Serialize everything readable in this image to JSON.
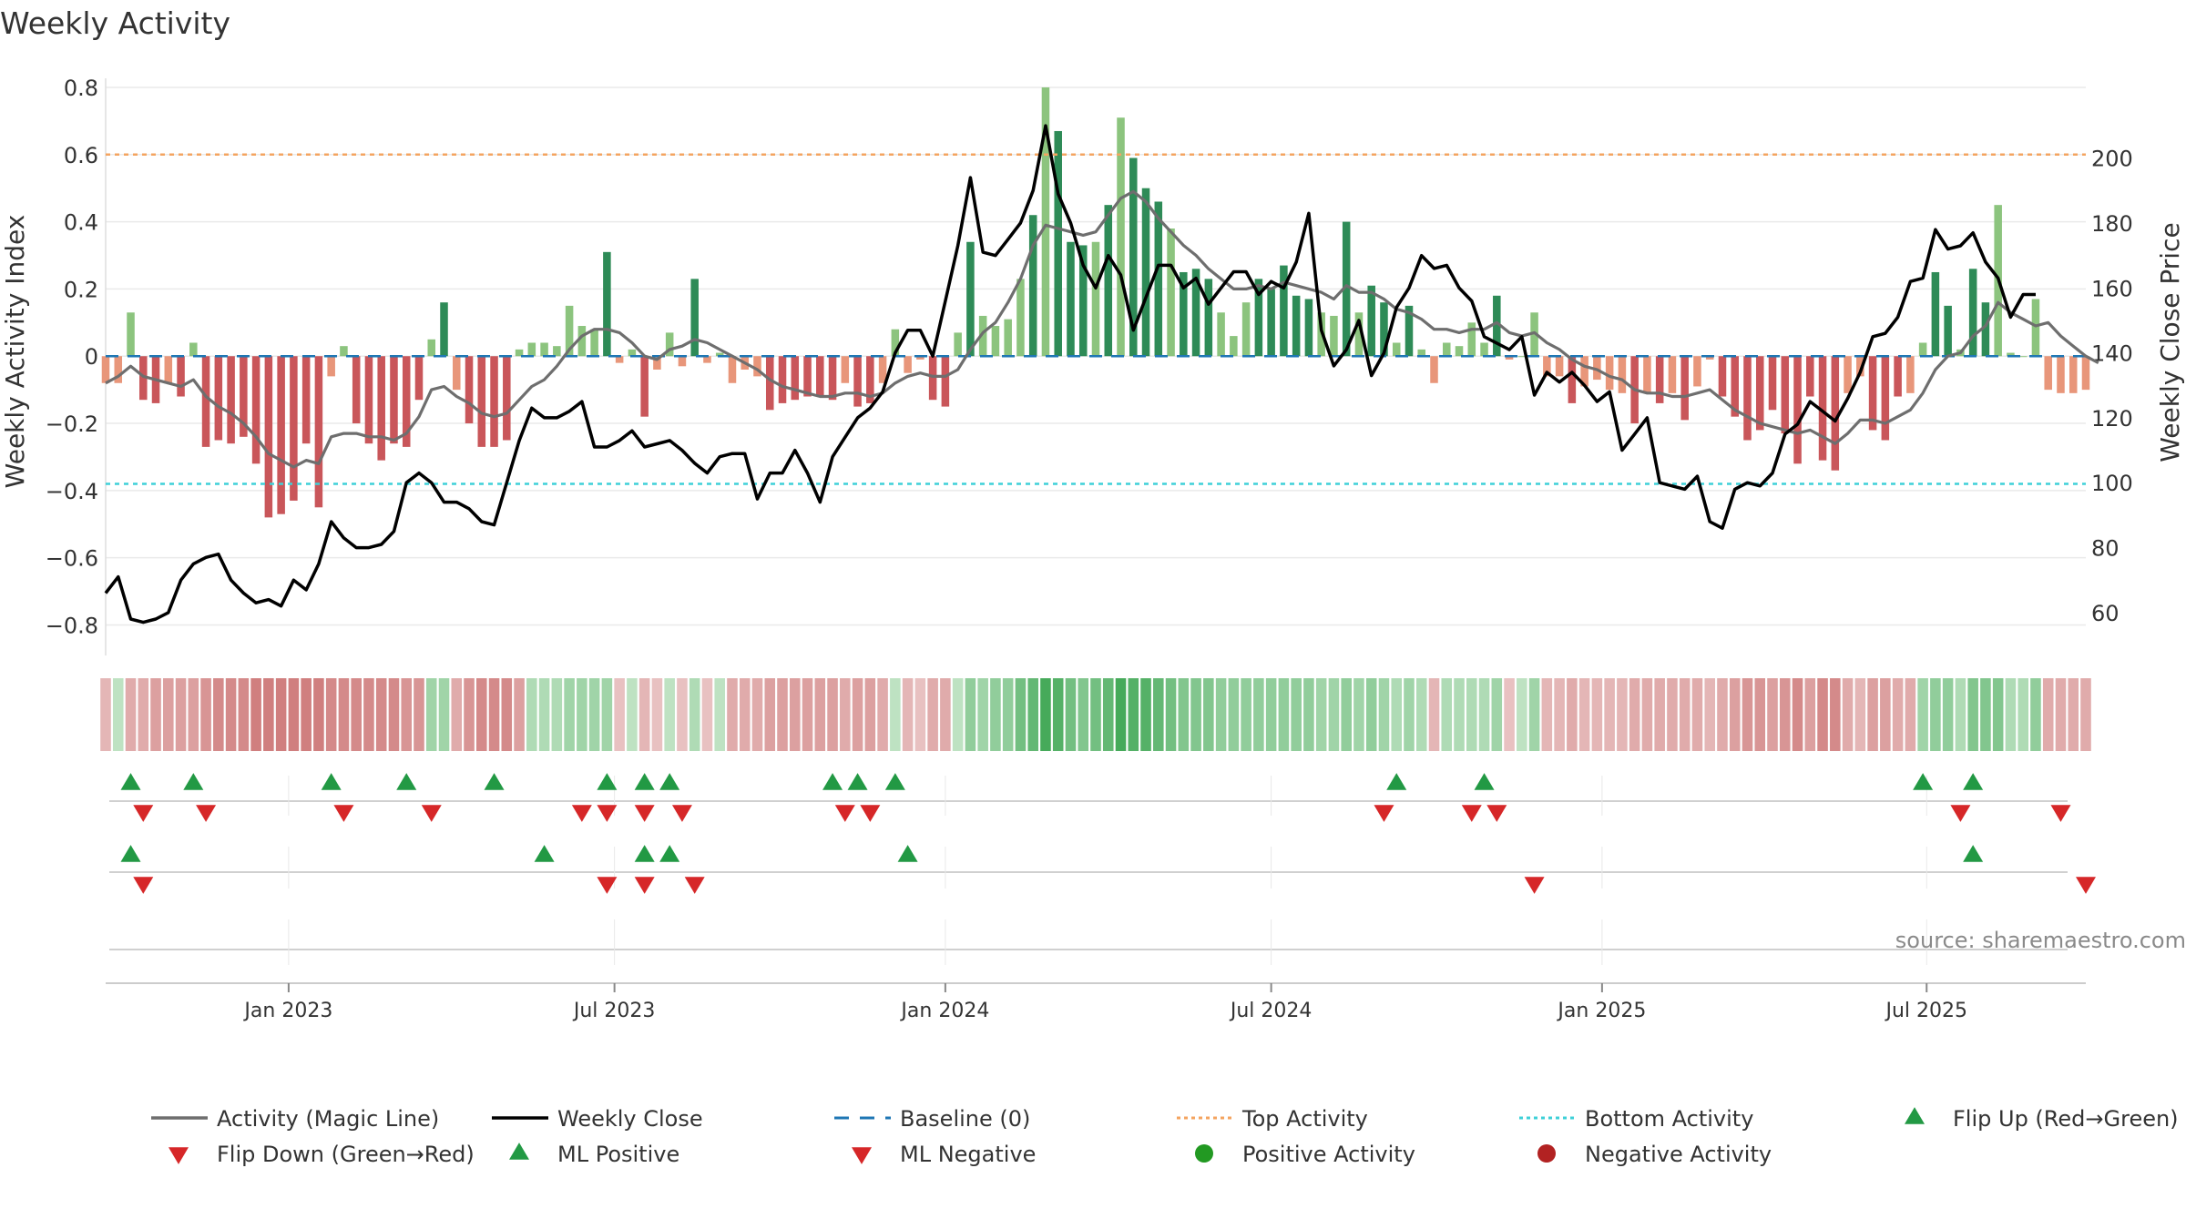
{
  "chart_data": {
    "type": "bar",
    "title": "Weekly Activity",
    "source": "source: sharemaestro.com",
    "ylabel_left": "Weekly Activity Index",
    "ylabel_right": "Weekly Close Price",
    "ylim_left": [
      -0.88,
      0.8
    ],
    "ylim_right": [
      47.9,
      221.8
    ],
    "yticks_left": [
      0.8,
      0.6,
      0.4,
      0.2,
      0,
      -0.2,
      -0.4,
      -0.6,
      -0.8
    ],
    "yticks_left_labels": [
      "0.8",
      "0.6",
      "0.4",
      "0.2",
      "0",
      "−0.2",
      "−0.4",
      "−0.6",
      "−0.8"
    ],
    "yticks_right": [
      200,
      180,
      160,
      140,
      120,
      100,
      80,
      60
    ],
    "yticks_right_labels": [
      "200",
      "180",
      "160",
      "140",
      "120",
      "100",
      "80",
      "60"
    ],
    "x_range": [
      0,
      158
    ],
    "x_ticks": [
      {
        "label": "Jan 2023",
        "x": 14.6
      },
      {
        "label": "Jul 2023",
        "x": 40.6
      },
      {
        "label": "Jan 2024",
        "x": 67
      },
      {
        "label": "Jul 2024",
        "x": 93
      },
      {
        "label": "Jan 2025",
        "x": 119.4
      },
      {
        "label": "Jul 2025",
        "x": 145.3
      }
    ],
    "top_activity": 0.6,
    "bottom_activity": -0.38,
    "activity": [
      -0.08,
      -0.08,
      0.13,
      -0.13,
      -0.14,
      -0.08,
      -0.12,
      0.04,
      -0.27,
      -0.25,
      -0.26,
      -0.24,
      -0.32,
      -0.48,
      -0.47,
      -0.43,
      -0.26,
      -0.45,
      -0.06,
      0.03,
      -0.2,
      -0.26,
      -0.31,
      -0.26,
      -0.27,
      -0.13,
      0.05,
      0.16,
      -0.1,
      -0.2,
      -0.27,
      -0.27,
      -0.25,
      0.02,
      0.04,
      0.04,
      0.03,
      0.15,
      0.09,
      0.08,
      0.31,
      -0.02,
      0.02,
      -0.18,
      -0.04,
      0.07,
      -0.03,
      0.23,
      -0.02,
      0.01,
      -0.08,
      -0.04,
      -0.06,
      -0.16,
      -0.14,
      -0.13,
      -0.12,
      -0.12,
      -0.13,
      -0.08,
      -0.15,
      -0.14,
      -0.08,
      0.08,
      -0.05,
      -0.01,
      -0.13,
      -0.15,
      0.07,
      0.34,
      0.12,
      0.09,
      0.11,
      0.23,
      0.42,
      0.8,
      0.67,
      0.34,
      0.33,
      0.34,
      0.45,
      0.71,
      0.59,
      0.5,
      0.46,
      0.38,
      0.25,
      0.26,
      0.23,
      0.13,
      0.06,
      0.16,
      0.23,
      0.2,
      0.27,
      0.18,
      0.17,
      0.13,
      0.12,
      0.4,
      0.13,
      0.21,
      0.16,
      0.04,
      0.15,
      0.02,
      -0.08,
      0.04,
      0.03,
      0.1,
      0.04,
      0.18,
      -0.01,
      0.0,
      0.13,
      -0.06,
      -0.06,
      -0.14,
      -0.09,
      -0.07,
      -0.1,
      -0.11,
      -0.2,
      -0.11,
      -0.14,
      -0.11,
      -0.19,
      -0.09,
      -0.01,
      -0.12,
      -0.18,
      -0.25,
      -0.22,
      -0.16,
      -0.23,
      -0.32,
      -0.12,
      -0.31,
      -0.34,
      -0.11,
      -0.06,
      -0.22,
      -0.25,
      -0.12,
      -0.11,
      0.04,
      0.25,
      0.15,
      0.02,
      0.26,
      0.16,
      0.45,
      0.01,
      0.0,
      0.17,
      -0.1,
      -0.11,
      -0.11,
      -0.1
    ],
    "magic_line": [
      -0.08,
      -0.06,
      -0.03,
      -0.06,
      -0.07,
      -0.08,
      -0.09,
      -0.07,
      -0.12,
      -0.15,
      -0.17,
      -0.2,
      -0.24,
      -0.29,
      -0.31,
      -0.33,
      -0.31,
      -0.32,
      -0.24,
      -0.23,
      -0.23,
      -0.24,
      -0.24,
      -0.25,
      -0.23,
      -0.18,
      -0.1,
      -0.09,
      -0.12,
      -0.14,
      -0.17,
      -0.18,
      -0.17,
      -0.13,
      -0.09,
      -0.07,
      -0.03,
      0.02,
      0.06,
      0.08,
      0.08,
      0.07,
      0.04,
      0.0,
      -0.01,
      0.02,
      0.03,
      0.05,
      0.04,
      0.02,
      0.0,
      -0.02,
      -0.04,
      -0.07,
      -0.09,
      -0.1,
      -0.11,
      -0.12,
      -0.12,
      -0.11,
      -0.11,
      -0.12,
      -0.11,
      -0.08,
      -0.06,
      -0.05,
      -0.06,
      -0.06,
      -0.04,
      0.02,
      0.07,
      0.1,
      0.16,
      0.23,
      0.33,
      0.39,
      0.38,
      0.37,
      0.36,
      0.37,
      0.42,
      0.47,
      0.49,
      0.46,
      0.41,
      0.37,
      0.33,
      0.3,
      0.26,
      0.23,
      0.2,
      0.2,
      0.21,
      0.2,
      0.22,
      0.21,
      0.2,
      0.19,
      0.17,
      0.21,
      0.19,
      0.19,
      0.17,
      0.14,
      0.13,
      0.11,
      0.08,
      0.08,
      0.07,
      0.08,
      0.08,
      0.1,
      0.07,
      0.06,
      0.07,
      0.04,
      0.02,
      -0.01,
      -0.03,
      -0.04,
      -0.06,
      -0.07,
      -0.1,
      -0.11,
      -0.11,
      -0.12,
      -0.12,
      -0.11,
      -0.1,
      -0.13,
      -0.16,
      -0.18,
      -0.2,
      -0.21,
      -0.22,
      -0.23,
      -0.22,
      -0.24,
      -0.26,
      -0.23,
      -0.19,
      -0.19,
      -0.2,
      -0.18,
      -0.16,
      -0.11,
      -0.04,
      0.0,
      0.01,
      0.06,
      0.09,
      0.16,
      0.13,
      0.11,
      0.09,
      0.1,
      0.06,
      0.03,
      0.0,
      -0.02
    ],
    "weekly_close": [
      66,
      71,
      58,
      57,
      58,
      60,
      70,
      75,
      77,
      78,
      70,
      66,
      63,
      64,
      62,
      70,
      67,
      75,
      88,
      83,
      80,
      80,
      81,
      85,
      100,
      103,
      100,
      94,
      94,
      92,
      88,
      87,
      100,
      113,
      123,
      120,
      120,
      122,
      125,
      111,
      111,
      113,
      116,
      111,
      112,
      113,
      110,
      106,
      103,
      108,
      109,
      109,
      95,
      103,
      103,
      110,
      103,
      94,
      108,
      114,
      120,
      123,
      128,
      140,
      147,
      147,
      139,
      156,
      173,
      194,
      171,
      170,
      175,
      180,
      190,
      210,
      189,
      180,
      167,
      160,
      170,
      164,
      147,
      157,
      167,
      167,
      160,
      163,
      155,
      160,
      165,
      165,
      158,
      162,
      160,
      168,
      183,
      147,
      136,
      141,
      150,
      133,
      140,
      154,
      160,
      170,
      166,
      167,
      160,
      156,
      145,
      143,
      141,
      145,
      127,
      134,
      131,
      134,
      130,
      125,
      128,
      110,
      115,
      120,
      100,
      99,
      98,
      102,
      88,
      86,
      98,
      100,
      99,
      103,
      115,
      118,
      125,
      122,
      119,
      126,
      134,
      145,
      146,
      151,
      162,
      163,
      178,
      172,
      173,
      177,
      168,
      163,
      151,
      158,
      158
    ],
    "ml_heat": [
      -0.3,
      0.2,
      -0.4,
      -0.4,
      -0.5,
      -0.5,
      -0.5,
      -0.5,
      -0.6,
      -0.7,
      -0.7,
      -0.7,
      -0.8,
      -0.8,
      -0.8,
      -0.8,
      -0.8,
      -0.8,
      -0.7,
      -0.7,
      -0.7,
      -0.7,
      -0.7,
      -0.7,
      -0.6,
      -0.6,
      0.4,
      0.4,
      -0.4,
      -0.6,
      -0.7,
      -0.7,
      -0.7,
      -0.5,
      0.3,
      0.3,
      0.3,
      0.4,
      0.4,
      0.4,
      0.4,
      -0.2,
      0.2,
      -0.3,
      -0.2,
      0.2,
      -0.2,
      0.3,
      -0.2,
      0.2,
      -0.4,
      -0.4,
      -0.4,
      -0.5,
      -0.5,
      -0.5,
      -0.5,
      -0.5,
      -0.5,
      -0.4,
      -0.5,
      -0.5,
      -0.4,
      0.2,
      -0.3,
      -0.2,
      -0.4,
      -0.4,
      0.2,
      0.5,
      0.4,
      0.5,
      0.5,
      0.7,
      0.8,
      1.0,
      0.9,
      0.7,
      0.6,
      0.7,
      0.8,
      1.0,
      0.9,
      0.9,
      0.8,
      0.7,
      0.6,
      0.6,
      0.6,
      0.5,
      0.5,
      0.5,
      0.5,
      0.5,
      0.5,
      0.5,
      0.5,
      0.4,
      0.4,
      0.5,
      0.4,
      0.5,
      0.4,
      0.3,
      0.4,
      0.3,
      -0.3,
      0.3,
      0.3,
      0.3,
      0.3,
      0.4,
      -0.2,
      0.2,
      0.4,
      -0.3,
      -0.3,
      -0.4,
      -0.3,
      -0.3,
      -0.3,
      -0.3,
      -0.4,
      -0.4,
      -0.4,
      -0.4,
      -0.4,
      -0.4,
      -0.3,
      -0.4,
      -0.5,
      -0.6,
      -0.6,
      -0.5,
      -0.6,
      -0.7,
      -0.5,
      -0.7,
      -0.7,
      -0.4,
      -0.3,
      -0.5,
      -0.5,
      -0.4,
      -0.4,
      0.4,
      0.5,
      0.5,
      0.3,
      0.6,
      0.6,
      0.6,
      0.3,
      0.3,
      0.5,
      -0.4,
      -0.4,
      -0.4,
      -0.4
    ],
    "flip_up": [
      2,
      7,
      18,
      24,
      31,
      40,
      43,
      45,
      58,
      60,
      63,
      103,
      110,
      145,
      149
    ],
    "flip_down": [
      3,
      8,
      19,
      26,
      38,
      40,
      43,
      46,
      59,
      61,
      102,
      109,
      111,
      148,
      156
    ],
    "ml_positive": [
      2,
      35,
      43,
      45,
      64,
      149
    ],
    "ml_negative": [
      3,
      40,
      43,
      47,
      114,
      158
    ],
    "legend": [
      {
        "label": "Activity (Magic Line)",
        "kind": "line",
        "color": "#6e6e6e"
      },
      {
        "label": "Weekly Close",
        "kind": "line",
        "color": "#000000"
      },
      {
        "label": "Baseline (0)",
        "kind": "dash",
        "color": "#1f77b4"
      },
      {
        "label": "Top Activity",
        "kind": "dot",
        "color": "#f4a460"
      },
      {
        "label": "Bottom Activity",
        "kind": "dot",
        "color": "#3ed0d8"
      },
      {
        "label": "Flip Up (Red→Green)",
        "kind": "triangle-up",
        "color": "#229944"
      },
      {
        "label": "Flip Down (Green→Red)",
        "kind": "triangle-down",
        "color": "#d62728"
      },
      {
        "label": "ML Positive",
        "kind": "triangle-up",
        "color": "#229944"
      },
      {
        "label": "ML Negative",
        "kind": "triangle-down",
        "color": "#d62728"
      },
      {
        "label": "Positive Activity",
        "kind": "circle",
        "color": "#229922"
      },
      {
        "label": "Negative Activity",
        "kind": "circle",
        "color": "#b22222"
      }
    ],
    "colors": {
      "bar_pos_strong": "#2e8b57",
      "bar_pos_weak": "#8cc47e",
      "bar_neg_strong": "#c9565a",
      "bar_neg_weak": "#e8967a",
      "magic_line": "#6e6e6e",
      "close_line": "#000000",
      "baseline": "#1f77b4",
      "top_line": "#f4a460",
      "bottom_line": "#3ed0d8",
      "grid": "#eaeaea",
      "marker_up": "#229944",
      "marker_down": "#d62728"
    }
  }
}
